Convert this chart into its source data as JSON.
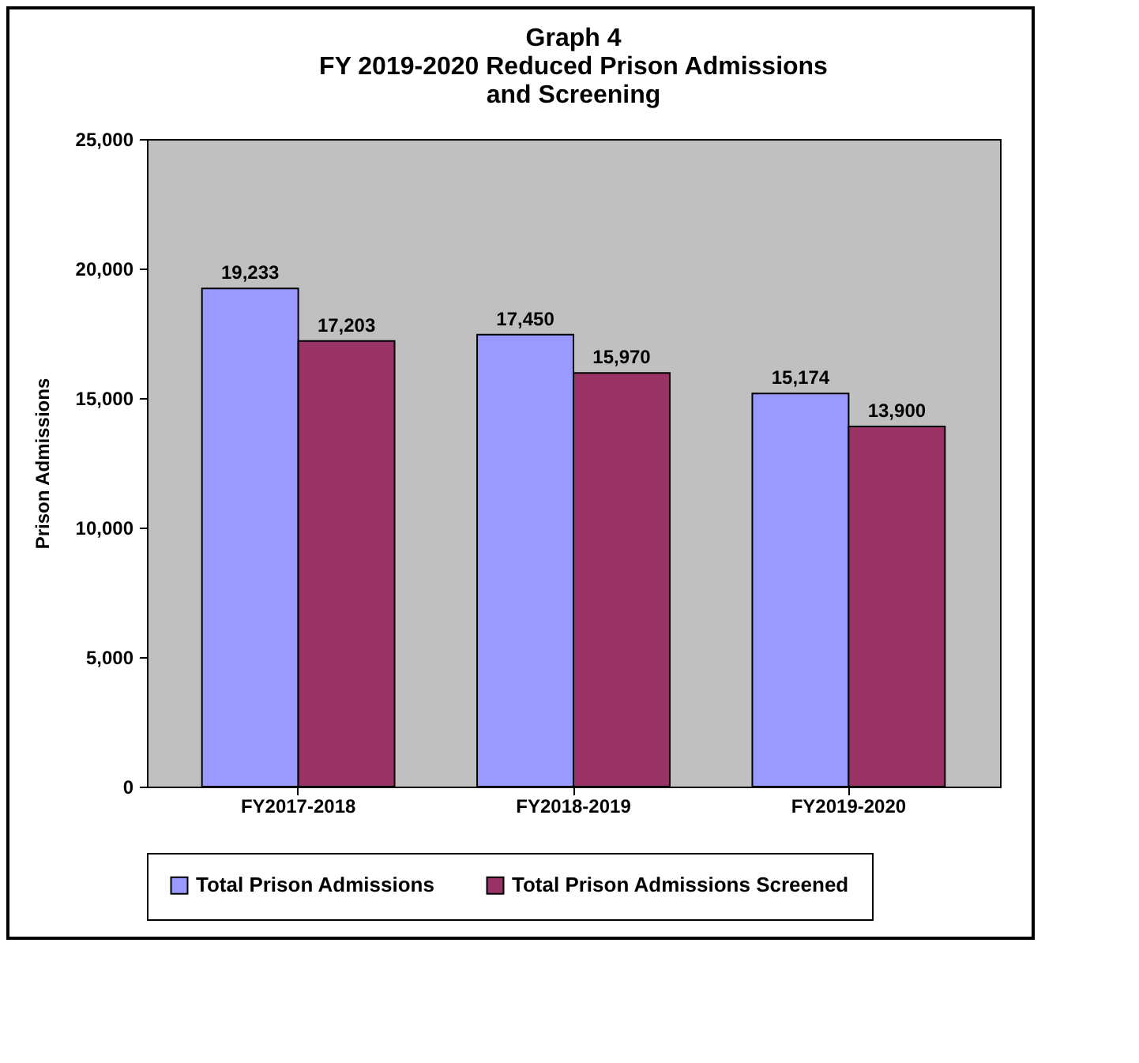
{
  "chart_data": {
    "type": "bar",
    "title": "Graph 4",
    "subtitle": "FY 2019-2020 Reduced Prison Admissions and Screening",
    "ylabel": "Prison Admissions",
    "categories": [
      "FY2017-2018",
      "FY2018-2019",
      "FY2019-2020"
    ],
    "series": [
      {
        "name": "Total Prison Admissions",
        "color": "#9999ff",
        "values": [
          19233,
          17450,
          15174
        ],
        "value_labels": [
          "19,233",
          "17,450",
          "15,174"
        ]
      },
      {
        "name": "Total Prison Admissions Screened",
        "color": "#993366",
        "values": [
          17203,
          15970,
          13900
        ],
        "value_labels": [
          "17,203",
          "15,970",
          "13,900"
        ]
      }
    ],
    "ylim": [
      0,
      25000
    ],
    "yticks": [
      0,
      {
        "value": 5000,
        "label": "5,000"
      },
      {
        "value": 10000,
        "label": "10,000"
      },
      {
        "value": 15000,
        "label": "15,000"
      },
      {
        "value": 20000,
        "label": "20,000"
      },
      {
        "value": 25000,
        "label": "25,000"
      }
    ],
    "legend": "bottom"
  }
}
